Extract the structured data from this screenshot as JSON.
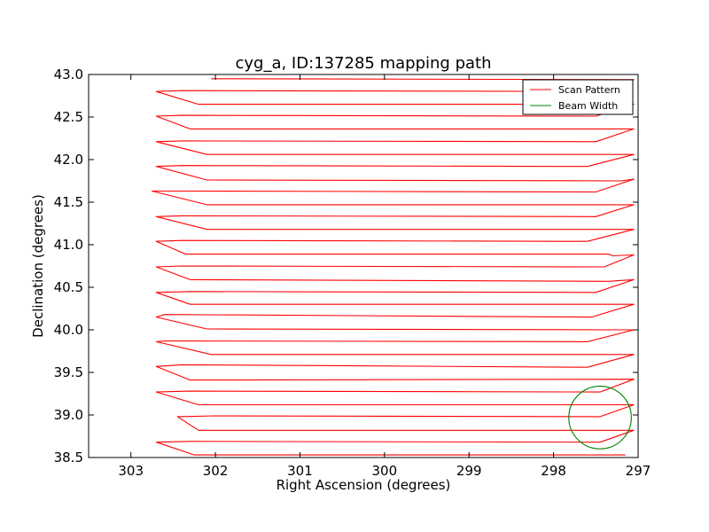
{
  "chart_data": {
    "type": "line",
    "title": "cyg_a, ID:137285 mapping path",
    "xlabel": "Right Ascension (degrees)",
    "ylabel": "Declination (degrees)",
    "xlim": [
      303.5,
      297.0
    ],
    "ylim": [
      38.5,
      43.0
    ],
    "x_inverted": true,
    "xticks": [
      "303",
      "302",
      "301",
      "300",
      "299",
      "298",
      "297"
    ],
    "yticks": [
      "38.5",
      "39.0",
      "39.5",
      "40.0",
      "40.5",
      "41.0",
      "41.5",
      "42.0",
      "42.5",
      "43.0"
    ],
    "legend": {
      "placement": "top-right",
      "entries": [
        "Scan Pattern",
        "Beam Width"
      ]
    },
    "colors": {
      "scan": "#ff0000",
      "beam": "#008000"
    },
    "series": [
      {
        "name": "Scan Pattern",
        "points": [
          [
            297.15,
            38.53
          ],
          [
            302.25,
            38.53
          ],
          [
            302.7,
            38.68
          ],
          [
            302.3,
            38.69
          ],
          [
            297.45,
            38.68
          ],
          [
            297.05,
            38.82
          ],
          [
            302.2,
            38.82
          ],
          [
            302.45,
            38.98
          ],
          [
            302.0,
            38.99
          ],
          [
            297.45,
            38.98
          ],
          [
            297.05,
            39.12
          ],
          [
            302.2,
            39.12
          ],
          [
            302.7,
            39.27
          ],
          [
            302.3,
            39.28
          ],
          [
            297.45,
            39.27
          ],
          [
            297.05,
            39.42
          ],
          [
            302.3,
            39.41
          ],
          [
            302.7,
            39.57
          ],
          [
            302.4,
            39.59
          ],
          [
            297.6,
            39.56
          ],
          [
            297.05,
            39.71
          ],
          [
            302.05,
            39.71
          ],
          [
            302.7,
            39.86
          ],
          [
            302.6,
            39.87
          ],
          [
            297.6,
            39.86
          ],
          [
            297.05,
            40.0
          ],
          [
            302.1,
            40.01
          ],
          [
            302.7,
            40.15
          ],
          [
            302.6,
            40.18
          ],
          [
            297.55,
            40.15
          ],
          [
            297.05,
            40.3
          ],
          [
            302.3,
            40.3
          ],
          [
            302.7,
            40.44
          ],
          [
            302.3,
            40.45
          ],
          [
            297.5,
            40.44
          ],
          [
            297.05,
            40.59
          ],
          [
            297.2,
            40.58
          ],
          [
            297.35,
            40.57
          ],
          [
            302.3,
            40.59
          ],
          [
            302.7,
            40.74
          ],
          [
            302.4,
            40.75
          ],
          [
            297.4,
            40.74
          ],
          [
            297.05,
            40.88
          ],
          [
            297.3,
            40.87
          ],
          [
            297.35,
            40.89
          ],
          [
            302.35,
            40.89
          ],
          [
            302.7,
            41.04
          ],
          [
            302.4,
            41.05
          ],
          [
            297.6,
            41.04
          ],
          [
            297.05,
            41.18
          ],
          [
            302.1,
            41.18
          ],
          [
            302.7,
            41.33
          ],
          [
            302.4,
            41.34
          ],
          [
            297.5,
            41.33
          ],
          [
            297.05,
            41.47
          ],
          [
            302.1,
            41.47
          ],
          [
            302.75,
            41.63
          ],
          [
            302.3,
            41.63
          ],
          [
            297.5,
            41.62
          ],
          [
            297.05,
            41.77
          ],
          [
            297.2,
            41.75
          ],
          [
            302.1,
            41.76
          ],
          [
            302.7,
            41.92
          ],
          [
            302.4,
            41.93
          ],
          [
            297.6,
            41.92
          ],
          [
            297.05,
            42.06
          ],
          [
            302.1,
            42.06
          ],
          [
            302.7,
            42.21
          ],
          [
            302.4,
            42.22
          ],
          [
            297.5,
            42.21
          ],
          [
            297.05,
            42.36
          ],
          [
            302.3,
            42.36
          ],
          [
            302.7,
            42.51
          ],
          [
            302.4,
            42.52
          ],
          [
            297.5,
            42.51
          ],
          [
            297.05,
            42.65
          ],
          [
            302.2,
            42.65
          ],
          [
            302.7,
            42.8
          ],
          [
            302.4,
            42.81
          ],
          [
            297.5,
            42.8
          ],
          [
            297.05,
            42.94
          ],
          [
            302.05,
            42.95
          ]
        ]
      },
      {
        "name": "Beam Width",
        "circle": {
          "center": [
            297.45,
            38.97
          ],
          "radius": 0.37
        }
      }
    ]
  }
}
